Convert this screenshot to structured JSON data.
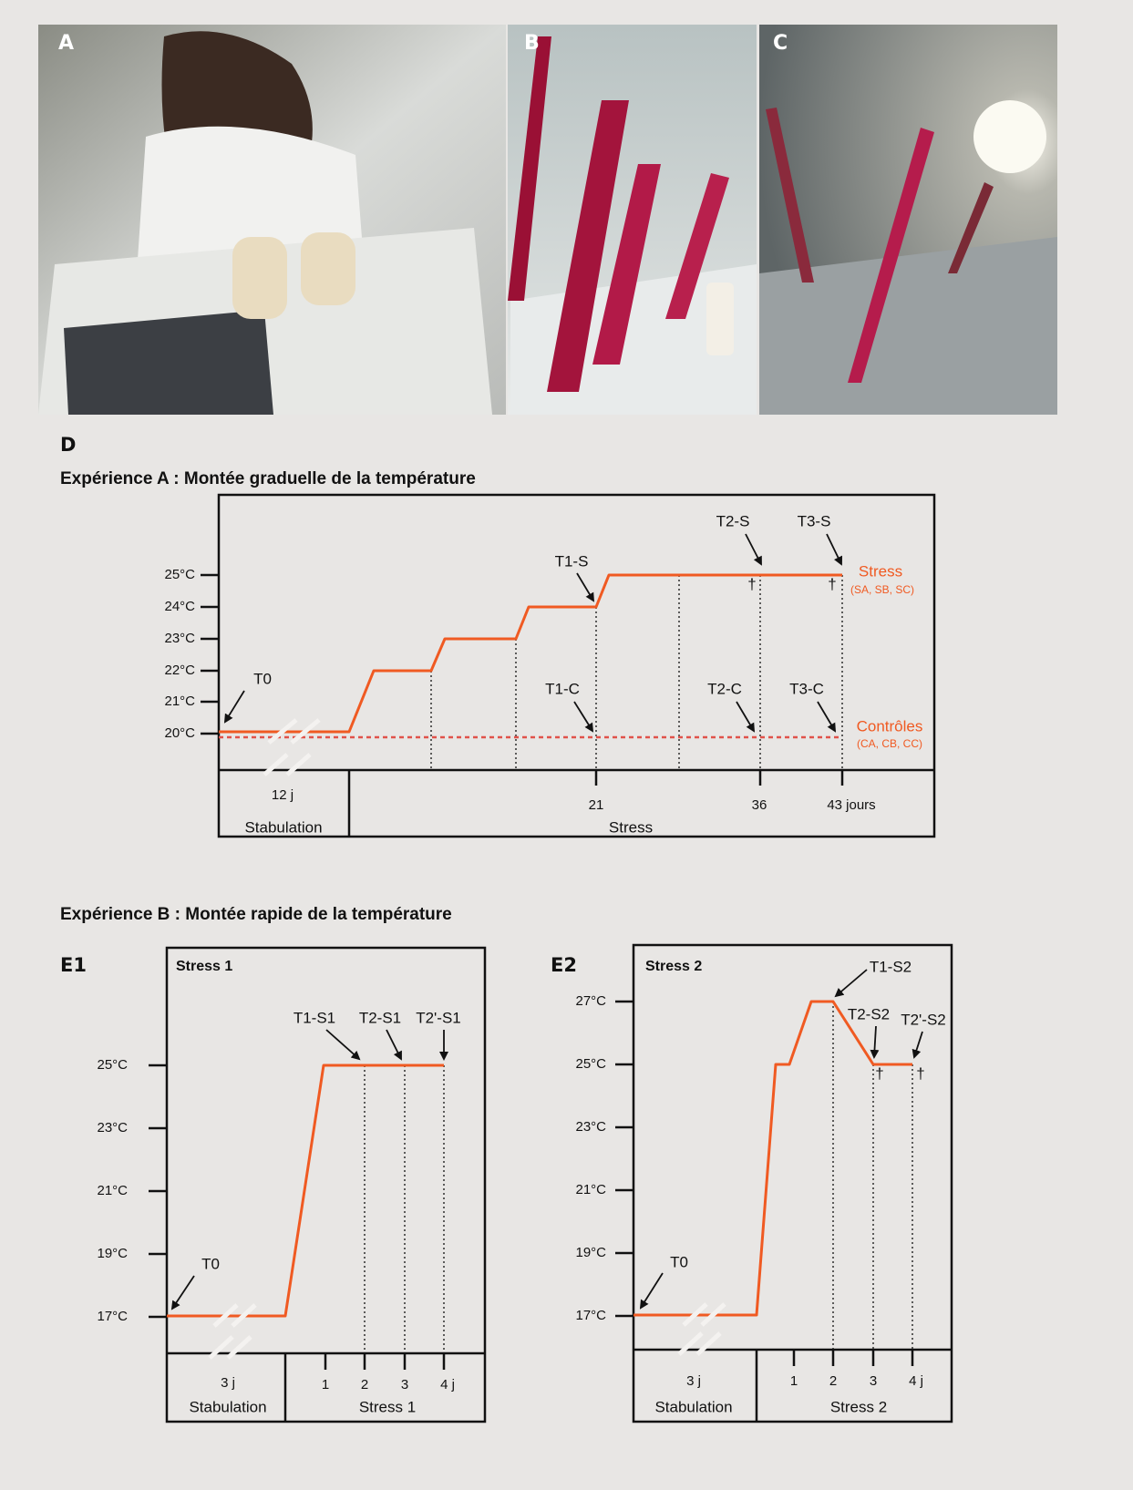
{
  "photos": [
    {
      "label": "A"
    },
    {
      "label": "B"
    },
    {
      "label": "C"
    }
  ],
  "panel_d": {
    "label": "D",
    "title": "Expérience A : Montée graduelle de la température",
    "y_ticks": [
      "25°C",
      "24°C",
      "23°C",
      "22°C",
      "21°C",
      "20°C"
    ],
    "annotations": [
      "T0",
      "T1-S",
      "T2-S",
      "T3-S",
      "T1-C",
      "T2-C",
      "T3-C"
    ],
    "daggers": [
      "†",
      "†"
    ],
    "stress_label": "Stress",
    "stress_groups": "(SA, SB, SC)",
    "control_label": "Contrôles",
    "control_groups": "(CA, CB, CC)",
    "x_labels": [
      "12 j",
      "21",
      "36",
      "43 jours"
    ],
    "phases": [
      "Stabulation",
      "Stress"
    ]
  },
  "experiment_b": {
    "title": "Expérience B : Montée rapide de la température",
    "panels": [
      {
        "label": "E1",
        "box_title": "Stress 1",
        "y_ticks": [
          "25°C",
          "23°C",
          "21°C",
          "19°C",
          "17°C"
        ],
        "annotations": [
          "T0",
          "T1-S1",
          "T2-S1",
          "T2'-S1"
        ],
        "x_labels": [
          "3 j",
          "1",
          "2",
          "3",
          "4 j"
        ],
        "phases": [
          "Stabulation",
          "Stress 1"
        ]
      },
      {
        "label": "E2",
        "box_title": "Stress 2",
        "y_ticks": [
          "27°C",
          "25°C",
          "23°C",
          "21°C",
          "19°C",
          "17°C"
        ],
        "annotations": [
          "T0",
          "T1-S2",
          "T2-S2",
          "T2'-S2"
        ],
        "daggers": [
          "†",
          "†"
        ],
        "x_labels": [
          "3 j",
          "1",
          "2",
          "3",
          "4 j"
        ],
        "phases": [
          "Stabulation",
          "Stress 2"
        ]
      }
    ]
  }
}
